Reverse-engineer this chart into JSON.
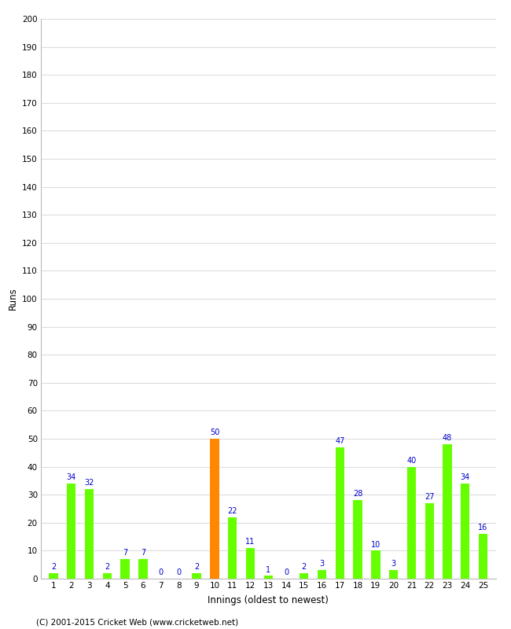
{
  "title": "",
  "xlabel": "Innings (oldest to newest)",
  "ylabel": "Runs",
  "categories": [
    1,
    2,
    3,
    4,
    5,
    6,
    7,
    8,
    9,
    10,
    11,
    12,
    13,
    14,
    15,
    16,
    17,
    18,
    19,
    20,
    21,
    22,
    23,
    24,
    25
  ],
  "values": [
    2,
    34,
    32,
    2,
    7,
    7,
    0,
    0,
    2,
    50,
    22,
    11,
    1,
    0,
    2,
    3,
    47,
    28,
    10,
    3,
    40,
    27,
    48,
    34,
    16
  ],
  "colors": [
    "#66ff00",
    "#66ff00",
    "#66ff00",
    "#66ff00",
    "#66ff00",
    "#66ff00",
    "#66ff00",
    "#66ff00",
    "#66ff00",
    "#ff8800",
    "#66ff00",
    "#66ff00",
    "#66ff00",
    "#66ff00",
    "#66ff00",
    "#66ff00",
    "#66ff00",
    "#66ff00",
    "#66ff00",
    "#66ff00",
    "#66ff00",
    "#66ff00",
    "#66ff00",
    "#66ff00",
    "#66ff00"
  ],
  "ylim": [
    0,
    200
  ],
  "yticks": [
    0,
    10,
    20,
    30,
    40,
    50,
    60,
    70,
    80,
    90,
    100,
    110,
    120,
    130,
    140,
    150,
    160,
    170,
    180,
    190,
    200
  ],
  "label_color": "#0000cc",
  "background_color": "#ffffff",
  "footer": "(C) 2001-2015 Cricket Web (www.cricketweb.net)",
  "grid_color": "#dddddd",
  "bar_width": 0.5
}
